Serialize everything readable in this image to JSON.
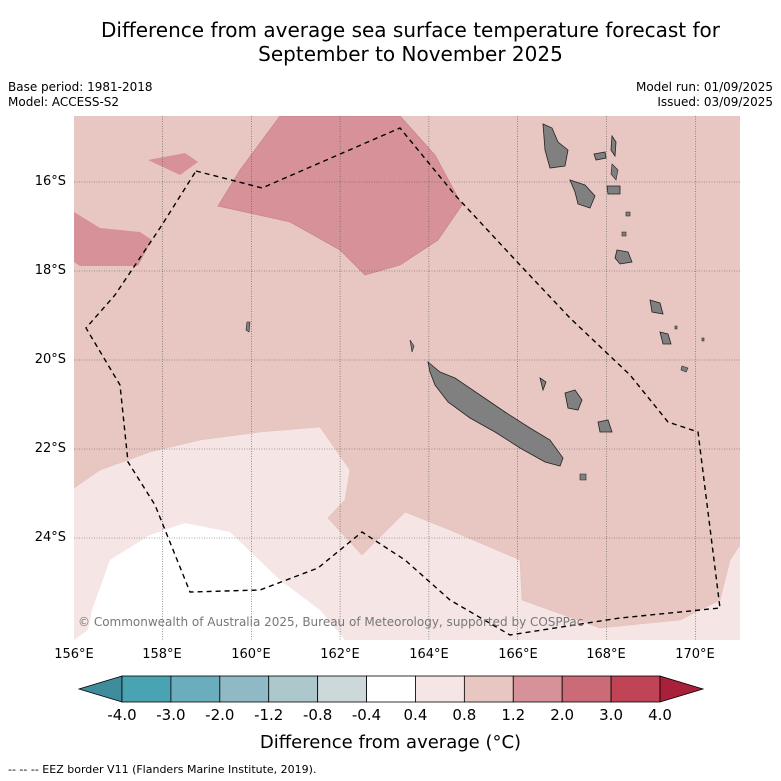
{
  "title_line1": "Difference from average sea surface temperature forecast for",
  "title_line2": "September to November 2025",
  "base_period": "Base period: 1981-2018",
  "model": "Model: ACCESS-S2",
  "model_run": "Model run: 01/09/2025",
  "issued": "Issued: 03/09/2025",
  "copyright": "© Commonwealth of Australia 2025, Bureau of Meteorology, supported by COSPPac",
  "lat_labels": [
    "16°S",
    "18°S",
    "20°S",
    "22°S",
    "24°S"
  ],
  "lon_labels": [
    "156°E",
    "158°E",
    "160°E",
    "162°E",
    "164°E",
    "166°E",
    "168°E",
    "170°E"
  ],
  "colorbar": {
    "title": "Difference from average (°C)",
    "ticks": [
      "-4.0",
      "-3.0",
      "-2.0",
      "-1.2",
      "-0.8",
      "-0.4",
      "0.4",
      "0.8",
      "1.2",
      "2.0",
      "3.0",
      "4.0"
    ],
    "colors": [
      "#3f8c9c",
      "#4aa3b3",
      "#6aaebd",
      "#8fb9c4",
      "#acc8cc",
      "#ccd8d9",
      "#ffffff",
      "#f5e6e5",
      "#e8c7c2",
      "#d79199",
      "#cc6b78",
      "#c04455",
      "#a8203a"
    ]
  },
  "footer": "--  --  -- EEZ border V11 (Flanders Marine Institute, 2019)."
}
